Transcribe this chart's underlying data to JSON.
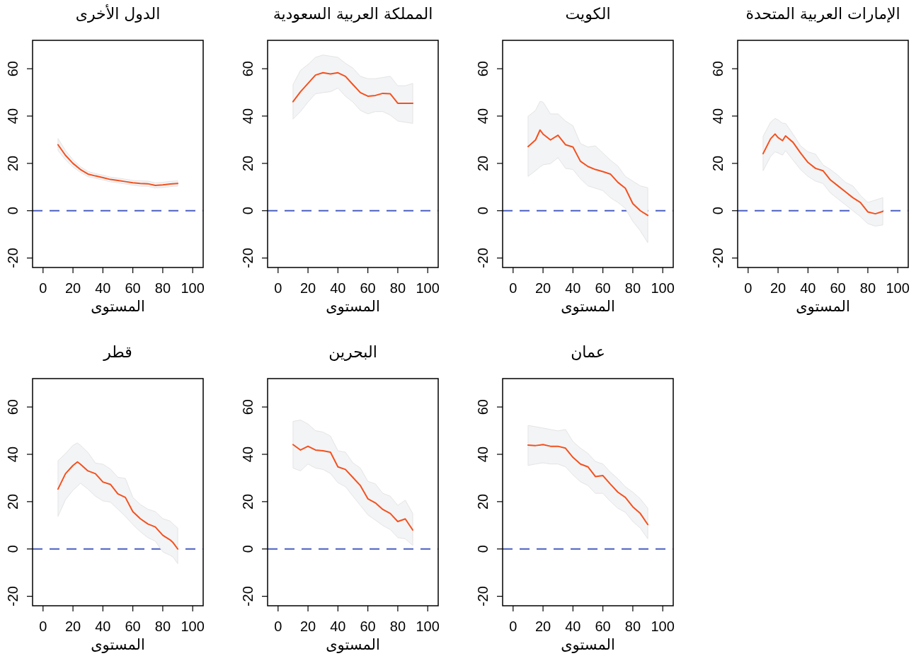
{
  "chart_data": [
    {
      "type": "line",
      "title": "الدول الأخرى",
      "xlabel": "المستوى",
      "xlim": [
        -7,
        107
      ],
      "ylim": [
        -24,
        72
      ],
      "xticks": [
        0,
        20,
        40,
        60,
        80,
        100
      ],
      "yticks": [
        -20,
        0,
        20,
        40,
        60
      ],
      "x": [
        10,
        15,
        20,
        25,
        30,
        35,
        40,
        45,
        50,
        55,
        60,
        65,
        70,
        75,
        80,
        85,
        90
      ],
      "series": [
        {
          "color": "#f4511e",
          "values": [
            27.9,
            23.4,
            20,
            17.4,
            15.5,
            14.7,
            14,
            13.2,
            12.8,
            12.3,
            11.8,
            11.5,
            11.4,
            10.7,
            10.9,
            11.3,
            11.5
          ],
          "lower": [
            25.5,
            21.5,
            18.5,
            16.2,
            14.4,
            13.7,
            13,
            12.2,
            11.8,
            11.3,
            10.8,
            10.4,
            10.3,
            9.6,
            9.8,
            10.2,
            10.4
          ],
          "upper": [
            30.5,
            25.4,
            21.5,
            18.6,
            16.6,
            15.7,
            15,
            14.2,
            13.8,
            13.3,
            12.8,
            12.6,
            12.5,
            11.8,
            12,
            12.4,
            12.6
          ]
        }
      ],
      "ref_lines": [
        {
          "axis": "y",
          "value": 0,
          "color": "#4a5fbf",
          "line_style": "dashed"
        }
      ]
    },
    {
      "type": "line",
      "title": "المملكة العربية السعودية",
      "xlabel": "المستوى",
      "xlim": [
        -7,
        107
      ],
      "ylim": [
        -24,
        72
      ],
      "xticks": [
        0,
        20,
        40,
        60,
        80,
        100
      ],
      "yticks": [
        -20,
        0,
        20,
        40,
        60
      ],
      "x": [
        10,
        15,
        20,
        25,
        30,
        35,
        40,
        45,
        50,
        55,
        60,
        65,
        70,
        75,
        80,
        85,
        90
      ],
      "series": [
        {
          "color": "#f4511e",
          "values": [
            46.1,
            50.3,
            53.8,
            57.3,
            58.3,
            57.8,
            58.3,
            56.8,
            53.3,
            49.9,
            48.4,
            48.7,
            49.6,
            49.4,
            45.4,
            45.4,
            45.4
          ],
          "lower": [
            38.7,
            41.9,
            45.9,
            49.4,
            49.9,
            50.3,
            51.8,
            48.4,
            45.9,
            42.4,
            40.9,
            41.9,
            41.9,
            40.4,
            37.9,
            37.4,
            36.9
          ],
          "upper": [
            53.3,
            59.3,
            61.8,
            64.8,
            65.8,
            65.3,
            64.8,
            62.3,
            60.3,
            56.8,
            55.8,
            55.8,
            56.3,
            56.8,
            52.8,
            52.8,
            53.8
          ]
        }
      ],
      "ref_lines": [
        {
          "axis": "y",
          "value": 0,
          "color": "#4a5fbf",
          "line_style": "dashed"
        }
      ]
    },
    {
      "type": "line",
      "title": "الكويت",
      "xlabel": "المستوى",
      "xlim": [
        -7,
        107
      ],
      "ylim": [
        -24,
        72
      ],
      "xticks": [
        0,
        20,
        40,
        60,
        80,
        100
      ],
      "yticks": [
        -20,
        0,
        20,
        40,
        60
      ],
      "x": [
        10,
        15,
        18,
        20,
        25,
        30,
        35,
        40,
        45,
        50,
        55,
        60,
        65,
        70,
        75,
        80,
        85,
        90
      ],
      "series": [
        {
          "color": "#f4511e",
          "values": [
            27.1,
            29.9,
            34.1,
            32.4,
            29.9,
            31.9,
            27.9,
            26.9,
            20.9,
            18.7,
            17.4,
            16.5,
            15.5,
            12,
            9.5,
            3,
            0,
            -2
          ],
          "lower": [
            14.5,
            16.9,
            18.5,
            19.4,
            19.9,
            22.4,
            17.9,
            17.4,
            13.5,
            10.5,
            9.5,
            8.5,
            5.5,
            3.5,
            1,
            -4.5,
            -8.5,
            -13.5
          ],
          "upper": [
            39.9,
            42.4,
            46.2,
            45.9,
            40.9,
            40.9,
            37.9,
            35.9,
            28.4,
            26.9,
            27.4,
            24.4,
            21.4,
            18.9,
            14.5,
            12.5,
            10.5,
            9.7
          ]
        }
      ],
      "ref_lines": [
        {
          "axis": "y",
          "value": 0,
          "color": "#4a5fbf",
          "line_style": "dashed"
        }
      ]
    },
    {
      "type": "line",
      "title": "الإمارات العربية المتحدة",
      "xlabel": "المستوى",
      "xlim": [
        -7,
        107
      ],
      "ylim": [
        -24,
        72
      ],
      "xticks": [
        0,
        20,
        40,
        60,
        80,
        100
      ],
      "yticks": [
        -20,
        0,
        20,
        40,
        60
      ],
      "x": [
        10,
        15,
        18,
        20,
        23,
        25,
        30,
        35,
        40,
        45,
        50,
        55,
        60,
        65,
        70,
        75,
        80,
        85,
        90
      ],
      "series": [
        {
          "color": "#f4511e",
          "values": [
            24.1,
            30.4,
            32.4,
            30.9,
            29.6,
            31.6,
            28.9,
            24.4,
            20.4,
            17.9,
            16.9,
            13,
            10.5,
            8,
            5.5,
            3.5,
            -0.5,
            -1.3,
            -0.3
          ],
          "lower": [
            16.9,
            22.9,
            24.9,
            24.4,
            23.5,
            25.4,
            21.4,
            17.4,
            14.5,
            12.5,
            11.5,
            7.5,
            5,
            2.5,
            0,
            -2.5,
            -5.5,
            -6.5,
            -6
          ],
          "upper": [
            31.4,
            37.4,
            39,
            38.4,
            37,
            36.9,
            32.4,
            27.4,
            24.9,
            23.9,
            19.4,
            17.4,
            15,
            12,
            10.5,
            6.5,
            3.5,
            4.5,
            5.5
          ]
        }
      ],
      "ref_lines": [
        {
          "axis": "y",
          "value": 0,
          "color": "#4a5fbf",
          "line_style": "dashed"
        }
      ]
    },
    {
      "type": "line",
      "title": "قطر",
      "xlabel": "المستوى",
      "xlim": [
        -7,
        107
      ],
      "ylim": [
        -24,
        72
      ],
      "xticks": [
        0,
        20,
        40,
        60,
        80,
        100
      ],
      "yticks": [
        -20,
        0,
        20,
        40,
        60
      ],
      "x": [
        10,
        15,
        20,
        23,
        25,
        30,
        35,
        40,
        45,
        50,
        55,
        60,
        65,
        70,
        75,
        80,
        85,
        87,
        90
      ],
      "series": [
        {
          "color": "#f4511e",
          "values": [
            25.3,
            31.8,
            35.3,
            36.8,
            35.8,
            33,
            31.8,
            28.3,
            27.3,
            23.3,
            21.8,
            15.8,
            12.8,
            10.6,
            9.3,
            5.8,
            3.8,
            2.6,
            0
          ],
          "lower": [
            13.8,
            20.8,
            24.8,
            26.5,
            27.8,
            25.3,
            22.3,
            20.3,
            19.8,
            16.8,
            13.8,
            10.3,
            7.3,
            4.8,
            3.3,
            -1.2,
            -2.7,
            -3.5,
            -6.2
          ],
          "upper": [
            37.3,
            40.3,
            43.8,
            44.8,
            43.8,
            40.8,
            36.3,
            35.8,
            33.8,
            30.3,
            29.8,
            21.8,
            18.8,
            16.8,
            15.8,
            12.8,
            11.8,
            10.5,
            8.8
          ]
        }
      ],
      "ref_lines": [
        {
          "axis": "y",
          "value": 0,
          "color": "#4a5fbf",
          "line_style": "dashed"
        }
      ]
    },
    {
      "type": "line",
      "title": "البحرين",
      "xlabel": "المستوى",
      "xlim": [
        -7,
        107
      ],
      "ylim": [
        -24,
        72
      ],
      "xticks": [
        0,
        20,
        40,
        60,
        80,
        100
      ],
      "yticks": [
        -20,
        0,
        20,
        40,
        60
      ],
      "x": [
        10,
        15,
        20,
        25,
        30,
        35,
        40,
        45,
        50,
        55,
        60,
        65,
        70,
        75,
        80,
        85,
        90
      ],
      "series": [
        {
          "color": "#f4511e",
          "values": [
            44.1,
            41.8,
            43.4,
            41.8,
            41.5,
            40.9,
            34.7,
            33.6,
            30.2,
            26.8,
            21.2,
            19.5,
            16.7,
            15,
            11.6,
            12.7,
            8
          ],
          "lower": [
            34.2,
            33,
            35.9,
            34.2,
            33.6,
            31.9,
            28,
            26.3,
            22.3,
            18.4,
            14.4,
            12.2,
            9.9,
            8.2,
            4.8,
            4.3,
            1.5
          ],
          "upper": [
            53.9,
            54.5,
            52.8,
            50,
            49.4,
            47.7,
            41.5,
            40.9,
            36.4,
            34.2,
            28.6,
            27.5,
            23.5,
            22.3,
            18.4,
            20.6,
            15
          ]
        }
      ],
      "ref_lines": [
        {
          "axis": "y",
          "value": 0,
          "color": "#4a5fbf",
          "line_style": "dashed"
        }
      ]
    },
    {
      "type": "line",
      "title": "عمان",
      "xlabel": "المستوى",
      "xlim": [
        -7,
        107
      ],
      "ylim": [
        -24,
        72
      ],
      "xticks": [
        0,
        20,
        40,
        60,
        80,
        100
      ],
      "yticks": [
        -20,
        0,
        20,
        40,
        60
      ],
      "x": [
        10,
        15,
        20,
        25,
        30,
        35,
        40,
        45,
        50,
        55,
        60,
        65,
        70,
        75,
        80,
        85,
        90
      ],
      "series": [
        {
          "color": "#f4511e",
          "values": [
            43.9,
            43.7,
            44.1,
            43.4,
            43.4,
            42.6,
            38.7,
            35.9,
            34.7,
            30.6,
            31,
            27.4,
            24,
            21.8,
            17.8,
            15,
            10.3
          ],
          "lower": [
            35.3,
            35.9,
            36.4,
            35.9,
            35.9,
            34.7,
            31.3,
            28.4,
            26.8,
            23.5,
            23.5,
            20.1,
            17.2,
            15.5,
            11.6,
            8.8,
            4.3
          ],
          "upper": [
            52.2,
            51.7,
            51.1,
            50.5,
            49.9,
            50.5,
            45.4,
            42.6,
            40.4,
            37,
            35.9,
            32.5,
            29.7,
            26.3,
            24,
            21.2,
            17.2
          ]
        }
      ],
      "ref_lines": [
        {
          "axis": "y",
          "value": 0,
          "color": "#4a5fbf",
          "line_style": "dashed"
        }
      ]
    }
  ]
}
